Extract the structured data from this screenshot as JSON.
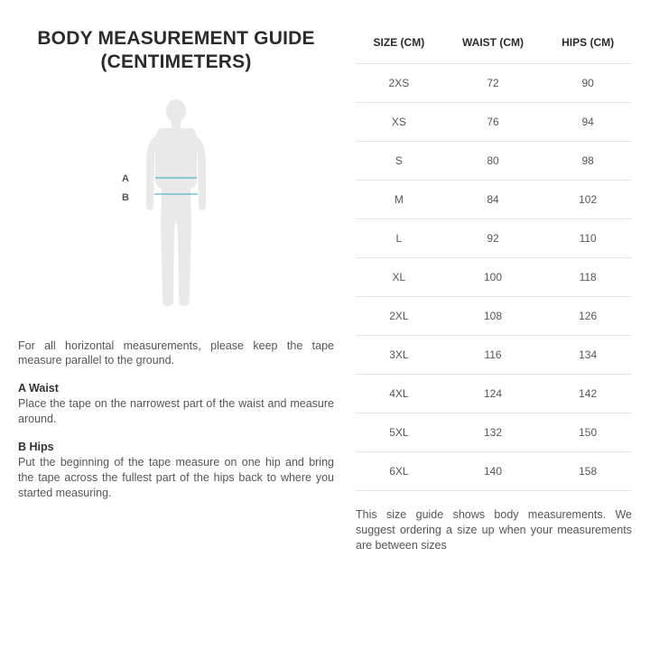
{
  "title_line1": "BODY MEASUREMENT GUIDE",
  "title_line2": "(CENTIMETERS)",
  "labels": {
    "a": "A",
    "b": "B"
  },
  "intro": "For all horizontal measurements, please keep the tape measure parallel to the ground.",
  "sections": [
    {
      "head": "A Waist",
      "body": "Place the tape on the narrowest part of the waist and measure around."
    },
    {
      "head": "B Hips",
      "body": "Put the beginning of the tape measure on one hip and bring the tape across the fullest part of the hips back to where you started measuring."
    }
  ],
  "table": {
    "columns": [
      "SIZE (CM)",
      "WAIST (CM)",
      "HIPS (CM)"
    ],
    "rows": [
      [
        "2XS",
        "72",
        "90"
      ],
      [
        "XS",
        "76",
        "94"
      ],
      [
        "S",
        "80",
        "98"
      ],
      [
        "M",
        "84",
        "102"
      ],
      [
        "L",
        "92",
        "110"
      ],
      [
        "XL",
        "100",
        "118"
      ],
      [
        "2XL",
        "108",
        "126"
      ],
      [
        "3XL",
        "116",
        "134"
      ],
      [
        "4XL",
        "124",
        "142"
      ],
      [
        "5XL",
        "132",
        "150"
      ],
      [
        "6XL",
        "140",
        "158"
      ]
    ]
  },
  "note": "This size guide shows body measurements. We suggest ordering a size up when your measurements are between sizes",
  "figure": {
    "silhouette_fill": "#e9e9e9",
    "line_color": "#5ab4c4",
    "line_width": 1.2
  }
}
